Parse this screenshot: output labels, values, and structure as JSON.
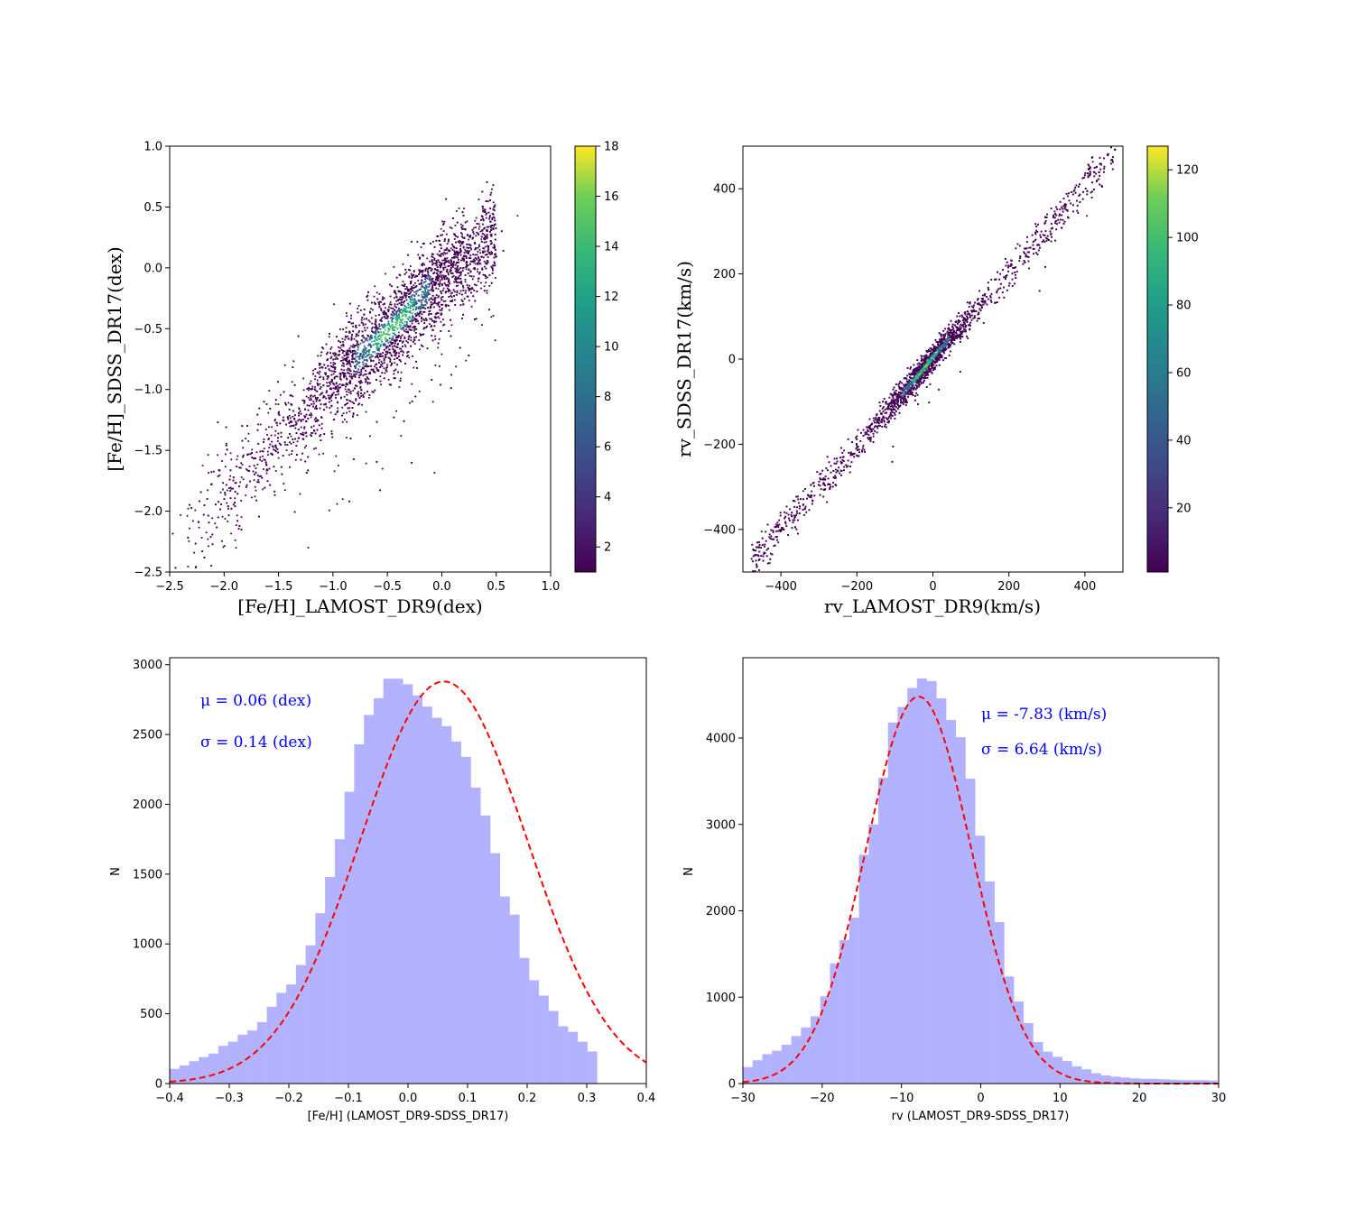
{
  "colors": {
    "viridis_low": "#440154",
    "viridis_high": "#fde725",
    "hist_fill": "#b2b2ff",
    "fit_line": "#ff0000",
    "annotation": "#0000ff"
  },
  "chart_data": [
    {
      "type": "heatmap",
      "id": "feh-scatter",
      "xlabel": "[Fe/H]_LAMOST_DR9(dex)",
      "ylabel": "[Fe/H]_SDSS_DR17(dex)",
      "xlim": [
        -2.5,
        1.0
      ],
      "ylim": [
        -2.5,
        1.0
      ],
      "xticks": [
        -2.5,
        -2.0,
        -1.5,
        -1.0,
        -0.5,
        0.0,
        0.5,
        1.0
      ],
      "xtick_labels": [
        "−2.5",
        "−2.0",
        "−1.5",
        "−1.0",
        "−0.5",
        "0.0",
        "0.5",
        "1.0"
      ],
      "yticks": [
        1.0,
        0.5,
        0.0,
        -0.5,
        -1.0,
        -1.5,
        -2.0,
        -2.5
      ],
      "ytick_labels": [
        "1.0",
        "0.5",
        "0.0",
        "−0.5",
        "−1.0",
        "−1.5",
        "−2.0",
        "−2.5"
      ],
      "density_ridge": [
        [
          -2.45,
          -2.35
        ],
        [
          -1.5,
          -1.4
        ],
        [
          -0.9,
          -0.85
        ],
        [
          -0.4,
          -0.45
        ],
        [
          0.0,
          -0.05
        ],
        [
          0.3,
          0.1
        ]
      ],
      "colorbar": {
        "min": 1,
        "max": 18,
        "ticks": [
          2,
          4,
          6,
          8,
          10,
          12,
          14,
          16,
          18
        ]
      }
    },
    {
      "type": "heatmap",
      "id": "rv-scatter",
      "xlabel": "rv_LAMOST_DR9(km/s)",
      "ylabel": "rv_SDSS_DR17(km/s)",
      "xlim": [
        -500,
        500
      ],
      "ylim": [
        -500,
        500
      ],
      "xticks": [
        -400,
        -200,
        0,
        200,
        400
      ],
      "xtick_labels": [
        "−400",
        "−200",
        "0",
        "200",
        "400"
      ],
      "yticks": [
        400,
        200,
        0,
        -200,
        -400
      ],
      "ytick_labels": [
        "400",
        "200",
        "0",
        "−200",
        "−400"
      ],
      "density_ridge": [
        [
          -480,
          -475
        ],
        [
          -200,
          -205
        ],
        [
          -30,
          -30
        ],
        [
          0,
          5
        ],
        [
          200,
          200
        ],
        [
          470,
          480
        ]
      ],
      "colorbar": {
        "min": 1,
        "max": 127,
        "ticks": [
          20,
          40,
          60,
          80,
          100,
          120
        ]
      }
    },
    {
      "type": "bar",
      "id": "feh-hist",
      "xlabel": "[Fe/H] (LAMOST_DR9-SDSS_DR17)",
      "ylabel": "N",
      "xlim": [
        -0.4,
        0.4
      ],
      "ylim": [
        0,
        3050
      ],
      "xticks": [
        -0.4,
        -0.3,
        -0.2,
        -0.1,
        0.0,
        0.1,
        0.2,
        0.3,
        0.4
      ],
      "xtick_labels": [
        "−0.4",
        "−0.3",
        "−0.2",
        "−0.1",
        "0.0",
        "0.1",
        "0.2",
        "0.3",
        "0.4"
      ],
      "yticks": [
        0,
        500,
        1000,
        1500,
        2000,
        2500,
        3000
      ],
      "ytick_labels": [
        "0",
        "500",
        "1000",
        "1500",
        "2000",
        "2500",
        "3000"
      ],
      "bin_edges_start": -0.4,
      "bin_width": 0.0163,
      "values": [
        105,
        130,
        160,
        190,
        215,
        270,
        300,
        350,
        380,
        440,
        550,
        650,
        710,
        850,
        990,
        1220,
        1480,
        1750,
        2090,
        2430,
        2640,
        2760,
        2900,
        2900,
        2860,
        2780,
        2700,
        2620,
        2560,
        2450,
        2340,
        2120,
        1920,
        1650,
        1340,
        1210,
        900,
        740,
        630,
        520,
        410,
        370,
        300,
        230
      ],
      "fit": {
        "mu": 0.06,
        "sigma": 0.14,
        "amplitude": 2880
      },
      "annotations": [
        "μ = 0.06 (dex)",
        "σ = 0.14 (dex)"
      ]
    },
    {
      "type": "bar",
      "id": "rv-hist",
      "xlabel": "rv (LAMOST_DR9-SDSS_DR17)",
      "ylabel": "N",
      "xlim": [
        -30,
        30
      ],
      "ylim": [
        0,
        4930
      ],
      "xticks": [
        -30,
        -20,
        -10,
        0,
        10,
        20,
        30
      ],
      "xtick_labels": [
        "−30",
        "−20",
        "−10",
        "0",
        "10",
        "20",
        "30"
      ],
      "yticks": [
        0,
        1000,
        2000,
        3000,
        4000
      ],
      "ytick_labels": [
        "0",
        "1000",
        "2000",
        "3000",
        "4000"
      ],
      "bin_edges_start": -30,
      "bin_width": 1.22,
      "values": [
        190,
        270,
        340,
        380,
        450,
        550,
        650,
        780,
        1010,
        1390,
        1660,
        1920,
        2650,
        3000,
        3540,
        4180,
        4360,
        4580,
        4690,
        4660,
        4460,
        4210,
        4010,
        3530,
        2870,
        2340,
        1870,
        1240,
        950,
        700,
        480,
        370,
        310,
        260,
        200,
        165,
        120,
        95,
        80,
        70,
        60,
        55,
        55,
        50,
        45,
        40,
        40,
        40,
        35
      ],
      "fit": {
        "mu": -7.83,
        "sigma": 6.64,
        "amplitude": 4480
      },
      "annotations": [
        "μ = -7.83 (km/s)",
        "σ = 6.64 (km/s)"
      ]
    }
  ]
}
